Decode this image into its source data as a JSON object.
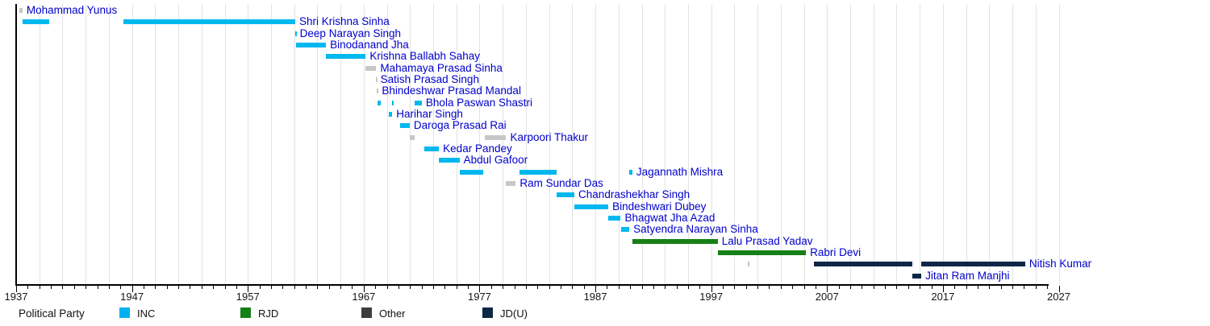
{
  "chart_data": {
    "type": "timeline",
    "title": "",
    "x_axis": {
      "start_year": 1937,
      "end_year": 2027,
      "decade_tick_labels": [
        "1937",
        "1947",
        "1957",
        "1967",
        "1977",
        "1987",
        "1997",
        "2007",
        "2017",
        "2027"
      ],
      "minor_tick_step_years": 1,
      "major_tick_step_years": 10,
      "gridline_step_years": 2,
      "gridline_first_year": 1939
    },
    "legend": {
      "title": "Political Party",
      "entries": [
        {
          "key": "INC",
          "label": "INC",
          "swatch_color": "#00b2ef"
        },
        {
          "key": "RJD",
          "label": "RJD",
          "swatch_color": "#168016"
        },
        {
          "key": "Other",
          "label": "Other",
          "swatch_color": "#3d3d3d"
        },
        {
          "key": "JDU",
          "label": "JD(U)",
          "swatch_color": "#0e2747"
        }
      ]
    },
    "parties": {
      "INC": {
        "bar_color": "#00b8ee"
      },
      "RJD": {
        "bar_color": "#168016"
      },
      "Other": {
        "bar_color": "#c7c7c7"
      },
      "JDU": {
        "bar_color": "#0e2747"
      }
    },
    "label_color": "#0000cd",
    "ministers": [
      {
        "name": "Mohammad Yunus",
        "party": "Other",
        "terms": [
          {
            "start": 1937.25,
            "end": 1937.55
          }
        ]
      },
      {
        "name": "Shri Krishna Sinha",
        "party": "INC",
        "terms": [
          {
            "start": 1937.54,
            "end": 1939.83
          },
          {
            "start": 1946.27,
            "end": 1961.09
          }
        ]
      },
      {
        "name": "Deep Narayan Singh",
        "party": "INC",
        "terms": [
          {
            "start": 1961.09,
            "end": 1961.14
          }
        ]
      },
      {
        "name": "Binodanand Jha",
        "party": "INC",
        "terms": [
          {
            "start": 1961.14,
            "end": 1963.75
          }
        ]
      },
      {
        "name": "Krishna Ballabh Sahay",
        "party": "INC",
        "terms": [
          {
            "start": 1963.75,
            "end": 1967.18
          }
        ]
      },
      {
        "name": "Mahamaya Prasad Sinha",
        "party": "Other",
        "terms": [
          {
            "start": 1967.18,
            "end": 1968.08
          }
        ]
      },
      {
        "name": "Satish Prasad Singh",
        "party": "Other",
        "terms": [
          {
            "start": 1968.08,
            "end": 1968.1
          }
        ]
      },
      {
        "name": "Bhindeshwar Prasad Mandal",
        "party": "Other",
        "terms": [
          {
            "start": 1968.1,
            "end": 1968.22
          }
        ]
      },
      {
        "name": "Bhola Paswan Shastri",
        "party": "INC",
        "terms": [
          {
            "start": 1968.22,
            "end": 1968.49
          },
          {
            "start": 1969.47,
            "end": 1969.51
          },
          {
            "start": 1971.42,
            "end": 1972.02
          }
        ]
      },
      {
        "name": "Harihar Singh",
        "party": "INC",
        "terms": [
          {
            "start": 1969.15,
            "end": 1969.47
          }
        ]
      },
      {
        "name": "Daroga Prasad Rai",
        "party": "INC",
        "terms": [
          {
            "start": 1970.12,
            "end": 1970.97
          }
        ]
      },
      {
        "name": "Karpoori Thakur",
        "party": "Other",
        "terms": [
          {
            "start": 1970.97,
            "end": 1971.42
          },
          {
            "start": 1977.48,
            "end": 1979.3
          }
        ]
      },
      {
        "name": "Kedar Pandey",
        "party": "INC",
        "terms": [
          {
            "start": 1972.21,
            "end": 1973.5
          }
        ]
      },
      {
        "name": "Abdul Gafoor",
        "party": "INC",
        "terms": [
          {
            "start": 1973.5,
            "end": 1975.27
          }
        ]
      },
      {
        "name": "Jagannath Mishra",
        "party": "INC",
        "terms": [
          {
            "start": 1975.27,
            "end": 1977.33
          },
          {
            "start": 1980.44,
            "end": 1983.62
          },
          {
            "start": 1989.93,
            "end": 1990.19
          }
        ]
      },
      {
        "name": "Ram Sundar Das",
        "party": "Other",
        "terms": [
          {
            "start": 1979.3,
            "end": 1980.13
          }
        ]
      },
      {
        "name": "Chandrashekhar Singh",
        "party": "INC",
        "terms": [
          {
            "start": 1983.62,
            "end": 1985.19
          }
        ]
      },
      {
        "name": "Bindeshwari Dubey",
        "party": "INC",
        "terms": [
          {
            "start": 1985.19,
            "end": 1988.12
          }
        ]
      },
      {
        "name": "Bhagwat Jha Azad",
        "party": "INC",
        "terms": [
          {
            "start": 1988.12,
            "end": 1989.19
          }
        ]
      },
      {
        "name": "Satyendra Narayan Sinha",
        "party": "INC",
        "terms": [
          {
            "start": 1989.19,
            "end": 1989.93
          }
        ]
      },
      {
        "name": "Lalu Prasad Yadav",
        "party": "RJD",
        "terms": [
          {
            "start": 1990.19,
            "end": 1997.56
          }
        ]
      },
      {
        "name": "Rabri Devi",
        "party": "RJD",
        "terms": [
          {
            "start": 1997.56,
            "end": 2005.18
          }
        ]
      },
      {
        "name": "Nitish Kumar",
        "party": "JDU",
        "terms": [
          {
            "start": 2000.17,
            "end": 2000.19,
            "party": "Other"
          },
          {
            "start": 2005.9,
            "end": 2014.38
          },
          {
            "start": 2015.14,
            "end": 2024.1
          }
        ]
      },
      {
        "name": "Jitan Ram Manjhi",
        "party": "JDU",
        "terms": [
          {
            "start": 2014.38,
            "end": 2015.14
          }
        ]
      }
    ]
  }
}
